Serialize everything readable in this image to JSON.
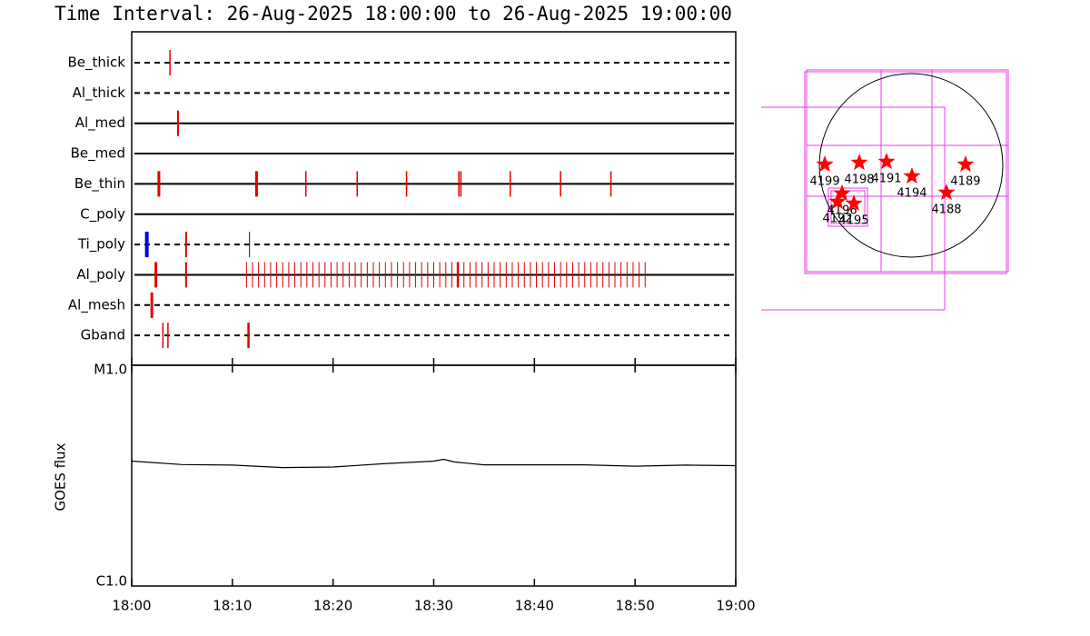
{
  "chart_data": [
    {
      "type": "timeline",
      "title": "Time Interval: 26-Aug-2025 18:00:00 to 26-Aug-2025 19:00:00",
      "xlim": [
        0,
        60
      ],
      "color": "#e00000",
      "series": [
        {
          "name": "Be_thick",
          "line": "dashed",
          "width": 1.5,
          "events": [
            3.8
          ]
        },
        {
          "name": "Al_thick",
          "line": "dashed",
          "width": 1.5,
          "events": []
        },
        {
          "name": "Al_med",
          "line": "solid",
          "width": 2,
          "events": [
            4.6
          ]
        },
        {
          "name": "Be_med",
          "line": "solid",
          "width": 1.5,
          "events": []
        },
        {
          "name": "Be_thin",
          "line": "solid",
          "width": 1.5,
          "events": [
            {
              "t": 2.7,
              "w": 3
            },
            {
              "t": 12.4,
              "w": 3
            },
            17.3,
            22.4,
            27.3,
            32.5,
            32.7,
            37.6,
            42.6,
            47.6
          ]
        },
        {
          "name": "C_poly",
          "line": "solid",
          "width": 1.5,
          "events": []
        },
        {
          "name": "Ti_poly",
          "line": "dashed",
          "width": 2,
          "events": [
            {
              "t": 1.5,
              "w": 4,
              "color": "#0000e0"
            },
            5.4,
            {
              "t": 11.7,
              "w": 1,
              "color": "#0000e0"
            }
          ]
        },
        {
          "name": "Al_poly",
          "line": "solid",
          "width": 1,
          "events": [
            {
              "t": 2.4,
              "w": 3
            },
            {
              "t": 5.4,
              "w": 2
            },
            11.4,
            12.0,
            12.6,
            13.2,
            13.8,
            14.4,
            15.0,
            15.6,
            16.2,
            16.8,
            17.4,
            18.0,
            18.6,
            19.2,
            19.8,
            20.4,
            21.0,
            21.6,
            22.2,
            22.8,
            23.4,
            24.0,
            24.6,
            25.2,
            25.8,
            26.4,
            27.0,
            27.6,
            28.2,
            28.8,
            29.4,
            30.0,
            30.6,
            31.2,
            31.8,
            {
              "t": 32.4,
              "w": 2.5
            },
            33.0,
            33.6,
            34.2,
            34.8,
            35.4,
            36.0,
            36.6,
            37.2,
            37.8,
            38.4,
            39.0,
            39.6,
            40.2,
            40.8,
            41.4,
            42.0,
            42.6,
            43.2,
            43.8,
            44.4,
            45.0,
            45.6,
            46.2,
            46.8,
            47.4,
            48.0,
            48.6,
            49.2,
            49.8,
            50.4,
            51.0
          ]
        },
        {
          "name": "Al_mesh",
          "line": "dashed",
          "width": 3,
          "events": [
            2.0
          ]
        },
        {
          "name": "Gband",
          "line": "dashed",
          "width": 1.5,
          "events": [
            3.1,
            3.6,
            {
              "t": 11.6,
              "w": 2.5
            }
          ]
        }
      ]
    },
    {
      "type": "line",
      "y_label": "GOES flux",
      "log": true,
      "color": "#000000",
      "x": [
        0,
        5,
        10,
        15,
        20,
        25,
        30,
        31,
        32,
        35,
        40,
        45,
        50,
        55,
        60
      ],
      "values": [
        3.68e-06,
        3.55e-06,
        3.53e-06,
        3.44e-06,
        3.46e-06,
        3.58e-06,
        3.68e-06,
        3.75e-06,
        3.65e-06,
        3.54e-06,
        3.54e-06,
        3.54e-06,
        3.49e-06,
        3.53e-06,
        3.51e-06
      ],
      "xlim": [
        0,
        60
      ],
      "xticks": [
        {
          "value": 0,
          "label": "18:00"
        },
        {
          "value": 10,
          "label": "18:10"
        },
        {
          "value": 20,
          "label": "18:20"
        },
        {
          "value": 30,
          "label": "18:30"
        },
        {
          "value": 40,
          "label": "18:40"
        },
        {
          "value": 50,
          "label": "18:50"
        },
        {
          "value": 60,
          "label": "19:00"
        }
      ],
      "ylim": [
        1e-06,
        1e-05
      ],
      "yticks": [
        {
          "value": 1e-06,
          "label": "C1.0"
        },
        {
          "value": 1e-05,
          "label": "M1.0"
        }
      ]
    },
    {
      "type": "scatter",
      "color": "#ff0000",
      "x": [
        -893,
        -536,
        -254,
        9,
        564,
        367,
        -714,
        -761,
        -592
      ],
      "values": [
        9,
        28,
        38,
        -113,
        9,
        -282,
        -291,
        -376,
        -395
      ],
      "point_labels": [
        "4199",
        "4198",
        "4191",
        "4194",
        "4189",
        "4188",
        "4196",
        "4192",
        "4195"
      ]
    }
  ]
}
